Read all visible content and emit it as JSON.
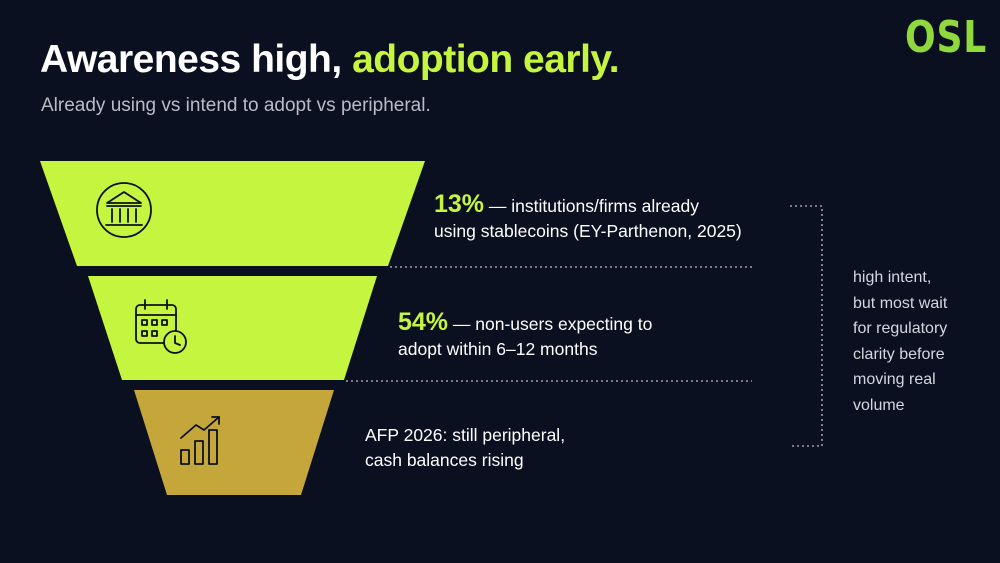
{
  "title": {
    "main": "Awareness high,",
    "accent": "adoption early."
  },
  "subtitle": "Already using vs intend to adopt vs peripheral.",
  "logo": "OSL",
  "colors": {
    "accent": "#c6f53f",
    "stage_gold": "#c4a63a",
    "background": "#0b1020"
  },
  "stages": [
    {
      "icon": "bank-icon",
      "percent": "13%",
      "text": "— institutions/firms already",
      "text2": "using stablecoins (EY-Parthenon, 2025)"
    },
    {
      "icon": "calendar-clock-icon",
      "percent": "54%",
      "text": "— non-users expecting to",
      "text2": "adopt within 6–12 months"
    },
    {
      "icon": "bar-chart-growth-icon",
      "text": "AFP 2026: still peripheral,",
      "text2": "cash balances rising"
    }
  ],
  "side_note": [
    "high intent,",
    "but most wait",
    "for regulatory",
    "clarity before",
    "moving real",
    "volume"
  ]
}
